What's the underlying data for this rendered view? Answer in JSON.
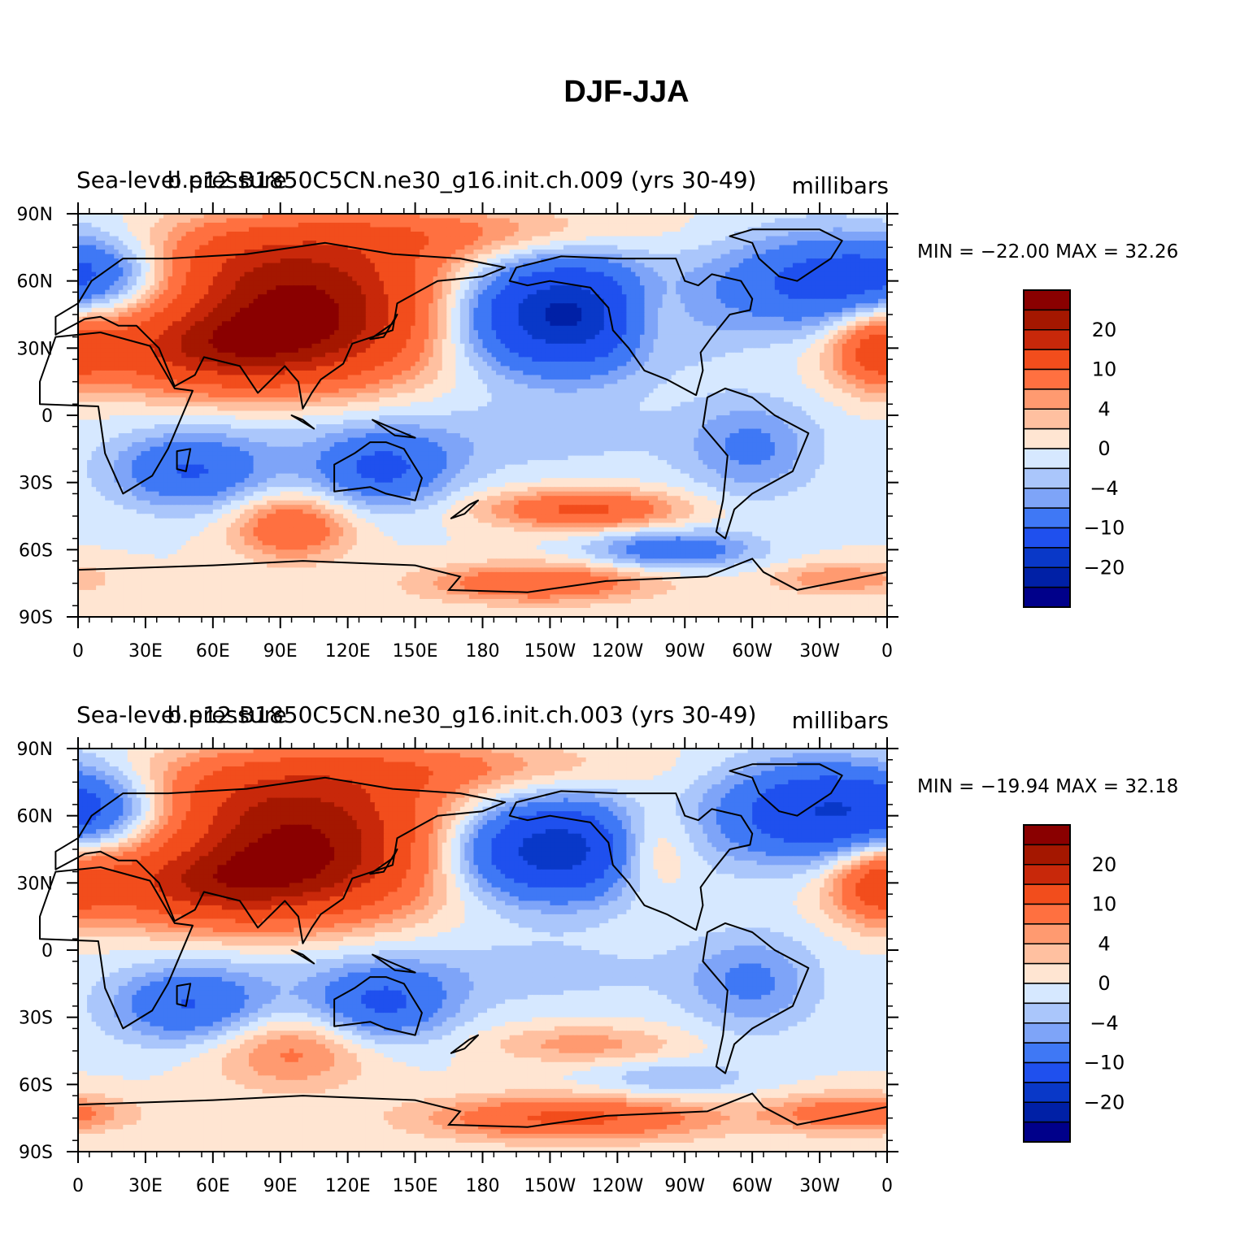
{
  "title": "DJF-JJA",
  "chart_data": [
    {
      "type": "heatmap",
      "left_label": "Sea-level pressure",
      "center_label": "b.e12.B1850C5CN.ne30_g16.init.ch.009 (yrs 30-49)",
      "units": "millibars",
      "stats": "MIN = −22.00  MAX =   32.26",
      "min": -22.0,
      "max": 32.26,
      "x_ticks": [
        "0",
        "30E",
        "60E",
        "90E",
        "120E",
        "150E",
        "180",
        "150W",
        "120W",
        "90W",
        "60W",
        "30W",
        "0"
      ],
      "y_ticks": [
        "90N",
        "60N",
        "30N",
        "0",
        "30S",
        "60S",
        "90S"
      ],
      "colorbar_labels": [
        "20",
        "10",
        "4",
        "0",
        "−4",
        "−10",
        "−20"
      ],
      "levels": [
        -24,
        -20,
        -16,
        -10,
        -6,
        -4,
        -2,
        0,
        2,
        4,
        6,
        10,
        16,
        20,
        24
      ],
      "blobs": [
        {
          "lon": 100,
          "lat": 45,
          "a": 24,
          "slon": 45,
          "slat": 20
        },
        {
          "lon": 55,
          "lat": 28,
          "a": 12,
          "slon": 40,
          "slat": 12
        },
        {
          "lon": 80,
          "lat": 70,
          "a": 8,
          "slon": 60,
          "slat": 12
        },
        {
          "lon": 215,
          "lat": 45,
          "a": -22,
          "slon": 35,
          "slat": 18
        },
        {
          "lon": 255,
          "lat": 45,
          "a": 7,
          "slon": 14,
          "slat": 14
        },
        {
          "lon": 330,
          "lat": 60,
          "a": -12,
          "slon": 32,
          "slat": 16
        },
        {
          "lon": 15,
          "lat": 65,
          "a": -10,
          "slon": 25,
          "slat": 12
        },
        {
          "lon": 355,
          "lat": 30,
          "a": 10,
          "slon": 14,
          "slat": 12
        },
        {
          "lon": 50,
          "lat": -25,
          "a": -10,
          "slon": 25,
          "slat": 12
        },
        {
          "lon": 135,
          "lat": -25,
          "a": -10,
          "slon": 22,
          "slat": 12
        },
        {
          "lon": 300,
          "lat": -15,
          "a": -6,
          "slon": 20,
          "slat": 16
        },
        {
          "lon": 95,
          "lat": -50,
          "a": 10,
          "slon": 18,
          "slat": 10
        },
        {
          "lon": 225,
          "lat": -42,
          "a": 11,
          "slon": 30,
          "slat": 6
        },
        {
          "lon": 265,
          "lat": -60,
          "a": -9,
          "slon": 25,
          "slat": 6
        },
        {
          "lon": 205,
          "lat": -75,
          "a": 10,
          "slon": 35,
          "slat": 6
        },
        {
          "lon": 340,
          "lat": -73,
          "a": 6,
          "slon": 22,
          "slat": 5
        },
        {
          "lon": 175,
          "lat": -10,
          "a": -3,
          "slon": 80,
          "slat": 12
        },
        {
          "lon": 160,
          "lat": 82,
          "a": 6,
          "slon": 60,
          "slat": 8
        }
      ]
    },
    {
      "type": "heatmap",
      "left_label": "Sea-level pressure",
      "center_label": "b.e12.B1850C5CN.ne30_g16.init.ch.003 (yrs 30-49)",
      "units": "millibars",
      "stats": "MIN = −19.94  MAX =   32.18",
      "min": -19.94,
      "max": 32.18,
      "x_ticks": [
        "0",
        "30E",
        "60E",
        "90E",
        "120E",
        "150E",
        "180",
        "150W",
        "120W",
        "90W",
        "60W",
        "30W",
        "0"
      ],
      "y_ticks": [
        "90N",
        "60N",
        "30N",
        "0",
        "30S",
        "60S",
        "90S"
      ],
      "colorbar_labels": [
        "20",
        "10",
        "4",
        "0",
        "−4",
        "−10",
        "−20"
      ],
      "levels": [
        -24,
        -20,
        -16,
        -10,
        -6,
        -4,
        -2,
        0,
        2,
        4,
        6,
        10,
        16,
        20,
        24
      ],
      "blobs": [
        {
          "lon": 100,
          "lat": 45,
          "a": 23,
          "slon": 45,
          "slat": 20
        },
        {
          "lon": 55,
          "lat": 28,
          "a": 12,
          "slon": 40,
          "slat": 12
        },
        {
          "lon": 80,
          "lat": 70,
          "a": 8,
          "slon": 60,
          "slat": 12
        },
        {
          "lon": 210,
          "lat": 45,
          "a": -20,
          "slon": 33,
          "slat": 16
        },
        {
          "lon": 255,
          "lat": 45,
          "a": 8,
          "slon": 14,
          "slat": 14
        },
        {
          "lon": 330,
          "lat": 62,
          "a": -16,
          "slon": 32,
          "slat": 16
        },
        {
          "lon": 15,
          "lat": 65,
          "a": -9,
          "slon": 25,
          "slat": 12
        },
        {
          "lon": 355,
          "lat": 30,
          "a": 10,
          "slon": 14,
          "slat": 12
        },
        {
          "lon": 50,
          "lat": -25,
          "a": -10,
          "slon": 25,
          "slat": 12
        },
        {
          "lon": 135,
          "lat": -25,
          "a": -10,
          "slon": 22,
          "slat": 12
        },
        {
          "lon": 300,
          "lat": -15,
          "a": -6,
          "slon": 20,
          "slat": 16
        },
        {
          "lon": 95,
          "lat": -45,
          "a": 7,
          "slon": 25,
          "slat": 12
        },
        {
          "lon": 225,
          "lat": -42,
          "a": 5,
          "slon": 30,
          "slat": 6
        },
        {
          "lon": 265,
          "lat": -58,
          "a": -4,
          "slon": 25,
          "slat": 6
        },
        {
          "lon": 220,
          "lat": -75,
          "a": 11,
          "slon": 45,
          "slat": 7
        },
        {
          "lon": 345,
          "lat": -73,
          "a": 9,
          "slon": 25,
          "slat": 6
        },
        {
          "lon": 175,
          "lat": -10,
          "a": -3,
          "slon": 80,
          "slat": 12
        },
        {
          "lon": 150,
          "lat": 82,
          "a": 6,
          "slon": 60,
          "slat": 8
        }
      ]
    }
  ],
  "colors": {
    "palette": [
      "#00008a",
      "#0020a6",
      "#0938c8",
      "#1f50ee",
      "#3f78f5",
      "#7ea4f8",
      "#aac6fb",
      "#d6e8ff",
      "#ffe5d2",
      "#ffc0a0",
      "#ff9a70",
      "#ff7040",
      "#f24d1c",
      "#c8280a",
      "#a41700",
      "#8a0000"
    ]
  }
}
